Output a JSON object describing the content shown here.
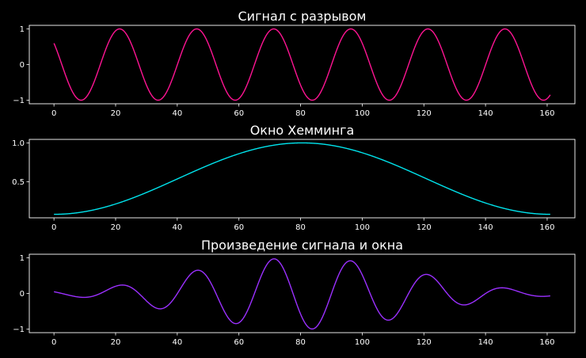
{
  "chart_data": [
    {
      "type": "line",
      "title": "Сигнал с разрывом",
      "xlabel": "",
      "ylabel": "",
      "xlim": [
        -8,
        169
      ],
      "ylim": [
        -1.1,
        1.1
      ],
      "xticks": [
        0,
        20,
        40,
        60,
        80,
        100,
        120,
        140,
        160
      ],
      "yticks": [
        -1,
        0,
        1
      ],
      "ytick_labels": [
        "−1",
        "0",
        "1"
      ],
      "grid": false,
      "series": [
        {
          "color": "#ff1493",
          "function": "cos(2*pi*(n - 21.3)/25)",
          "n_range": [
            0,
            161
          ],
          "x": [
            0,
            4.5,
            8.8,
            13,
            17.1,
            21.3,
            25.5,
            29.8,
            34,
            38.3,
            46.2,
            58.8,
            71.3,
            83.8,
            96.3,
            108.8,
            121.3,
            133.8,
            146.3,
            158.8,
            161
          ],
          "y": [
            0.58,
            -0.5,
            -1.0,
            -0.56,
            0.5,
            1.0,
            0.5,
            -0.5,
            -1.0,
            -0.6,
            1.0,
            -1.0,
            1.0,
            -1.0,
            1.0,
            -1.0,
            1.0,
            -1.0,
            1.0,
            -1.0,
            -0.84
          ]
        }
      ]
    },
    {
      "type": "line",
      "title": "Окно Хемминга",
      "xlabel": "",
      "ylabel": "",
      "xlim": [
        -8,
        169
      ],
      "ylim": [
        0.035,
        1.045
      ],
      "xticks": [
        0,
        20,
        40,
        60,
        80,
        100,
        120,
        140,
        160
      ],
      "yticks": [
        0.5,
        1.0
      ],
      "ytick_labels": [
        "0.5",
        "1.0"
      ],
      "grid": false,
      "series": [
        {
          "color": "#00e5ee",
          "function": "0.54 - 0.46*cos(2*pi*n/161)",
          "n_range": [
            0,
            161
          ],
          "x": [
            0,
            20,
            40,
            60,
            80.5,
            100,
            120,
            140,
            161
          ],
          "y": [
            0.08,
            0.19,
            0.48,
            0.84,
            1.0,
            0.85,
            0.5,
            0.2,
            0.08
          ]
        }
      ]
    },
    {
      "type": "line",
      "title": "Произведение сигнала и окна",
      "xlabel": "",
      "ylabel": "",
      "xlim": [
        -8,
        169
      ],
      "ylim": [
        -1.1,
        1.1
      ],
      "xticks": [
        0,
        20,
        40,
        60,
        80,
        100,
        120,
        140,
        160
      ],
      "yticks": [
        -1,
        0,
        1
      ],
      "ytick_labels": [
        "−1",
        "0",
        "1"
      ],
      "grid": false,
      "series": [
        {
          "color": "#9b30ff",
          "function": "signal(n) * window(n)",
          "n_range": [
            0,
            161
          ],
          "x": [
            0,
            8.8,
            21.3,
            34,
            46.3,
            58.8,
            71.3,
            83.8,
            96.3,
            108.8,
            121.3,
            133.8,
            146.3,
            161
          ],
          "y": [
            0.05,
            -0.09,
            0.23,
            -0.45,
            0.65,
            -0.85,
            0.97,
            -1.0,
            0.91,
            -0.72,
            0.53,
            -0.32,
            0.16,
            -0.07
          ]
        }
      ]
    }
  ]
}
